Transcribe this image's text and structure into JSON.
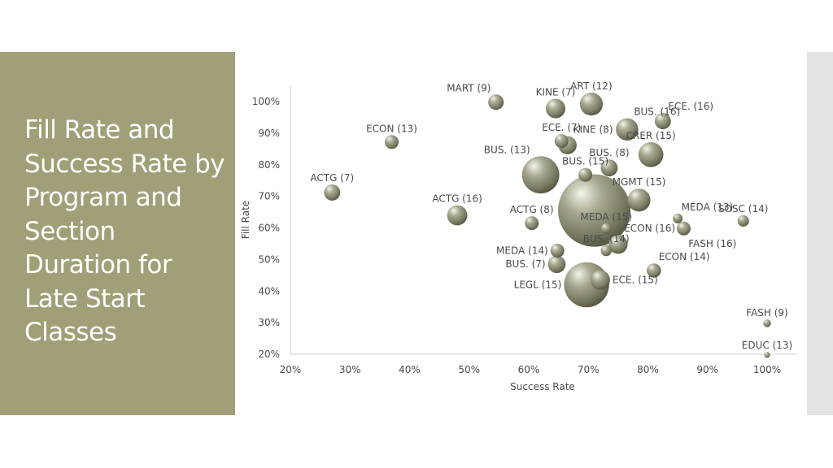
{
  "slide": {
    "title": "Fill Rate and Success Rate by Program and Section Duration for Late Start Classes",
    "accent_color": "#a09f78",
    "bubble_color": "#8f8e78"
  },
  "chart_data": {
    "type": "scatter",
    "subtype": "bubble",
    "title": "",
    "xlabel": "Success Rate",
    "ylabel": "Fill Rate",
    "xlim": [
      0.2,
      1.0
    ],
    "ylim": [
      0.2,
      1.0
    ],
    "x_ticks": [
      0.2,
      0.3,
      0.4,
      0.5,
      0.6,
      0.7,
      0.8,
      0.9,
      1.0
    ],
    "y_ticks": [
      0.2,
      0.3,
      0.4,
      0.5,
      0.6,
      0.7,
      0.8,
      0.9,
      1.0
    ],
    "x_tick_labels": [
      "20%",
      "30%",
      "40%",
      "50%",
      "60%",
      "70%",
      "80%",
      "90%",
      "100%"
    ],
    "y_tick_labels": [
      "20%",
      "30%",
      "40%",
      "50%",
      "60%",
      "70%",
      "80%",
      "90%",
      "100%"
    ],
    "grid": false,
    "points": [
      {
        "label": "MART (9)",
        "x": 0.545,
        "y": 0.998,
        "size": 1,
        "label_pos": "above-left"
      },
      {
        "label": "KINE (7)",
        "x": 0.645,
        "y": 0.978,
        "size": 1.6,
        "label_pos": "above"
      },
      {
        "label": "ART (12)",
        "x": 0.705,
        "y": 0.992,
        "size": 2.2,
        "label_pos": "above"
      },
      {
        "label": "BUS. (16)",
        "x": 0.765,
        "y": 0.912,
        "size": 2.1,
        "label_pos": "above-right"
      },
      {
        "label": "ECE. (16)",
        "x": 0.825,
        "y": 0.938,
        "size": 1.1,
        "label_pos": "above-right"
      },
      {
        "label": "ECON (13)",
        "x": 0.37,
        "y": 0.872,
        "size": 0.8,
        "label_pos": "above"
      },
      {
        "label": "ECE. (7)",
        "x": 0.655,
        "y": 0.875,
        "size": 0.8,
        "label_pos": "above"
      },
      {
        "label": "KINE (8)",
        "x": 0.665,
        "y": 0.862,
        "size": 1.4,
        "label_pos": "above-right"
      },
      {
        "label": "CRER (15)",
        "x": 0.805,
        "y": 0.832,
        "size": 2.6,
        "label_pos": "above"
      },
      {
        "label": "BUS. (13)",
        "x": 0.62,
        "y": 0.768,
        "size": 5.8,
        "label_pos": "above-left"
      },
      {
        "label": "BUS. (8)",
        "x": 0.735,
        "y": 0.79,
        "size": 1.2,
        "label_pos": "above"
      },
      {
        "label": "BUS. (15)",
        "x": 0.695,
        "y": 0.768,
        "size": 0.8,
        "label_pos": "above"
      },
      {
        "label": "ACTG (7)",
        "x": 0.27,
        "y": 0.712,
        "size": 1.1,
        "label_pos": "above"
      },
      {
        "label": "MGMT (15)",
        "x": 0.785,
        "y": 0.688,
        "size": 2.2,
        "label_pos": "above"
      },
      {
        "label": "ACTG (16)",
        "x": 0.48,
        "y": 0.64,
        "size": 1.7,
        "label_pos": "above"
      },
      {
        "label": "ACTG (8)",
        "x": 0.605,
        "y": 0.615,
        "size": 0.8,
        "label_pos": "above"
      },
      {
        "label": "MEDA (13)",
        "x": 0.85,
        "y": 0.63,
        "size": 0.4,
        "label_pos": "above-right"
      },
      {
        "label": "SOSC (14)",
        "x": 0.96,
        "y": 0.622,
        "size": 0.55,
        "label_pos": "above"
      },
      {
        "label": "MEDA (15)",
        "x": 0.73,
        "y": 0.598,
        "size": 0.45,
        "label_pos": "above"
      },
      {
        "label": "FASH (16)",
        "x": 0.86,
        "y": 0.598,
        "size": 0.8,
        "label_pos": "below-right"
      },
      {
        "label": "ECON (16)",
        "x": 0.75,
        "y": 0.548,
        "size": 1.5,
        "label_pos": "above-right"
      },
      {
        "label": "BUS. (14)",
        "x": 0.73,
        "y": 0.528,
        "size": 0.5,
        "label_pos": "above"
      },
      {
        "label": "MEDA (14)",
        "x": 0.648,
        "y": 0.528,
        "size": 0.8,
        "label_pos": "left"
      },
      {
        "label": "BUS. (7)",
        "x": 0.647,
        "y": 0.485,
        "size": 1.3,
        "label_pos": "left"
      },
      {
        "label": "ECON (14)",
        "x": 0.81,
        "y": 0.465,
        "size": 0.85,
        "label_pos": "above-right"
      },
      {
        "label": "LEGL (15)",
        "x": 0.697,
        "y": 0.42,
        "size": 8.5,
        "label_pos": "left"
      },
      {
        "label": "ECE. (15)",
        "x": 0.72,
        "y": 0.435,
        "size": 1.6,
        "label_pos": "right"
      },
      {
        "label": "Unlabeled (large)",
        "x": 0.71,
        "y": 0.655,
        "size": 22,
        "label_pos": "none"
      },
      {
        "label": "FASH (9)",
        "x": 1.0,
        "y": 0.298,
        "size": 0.25,
        "label_pos": "above"
      },
      {
        "label": "EDUC (13)",
        "x": 1.0,
        "y": 0.198,
        "size": 0.15,
        "label_pos": "above"
      }
    ]
  }
}
